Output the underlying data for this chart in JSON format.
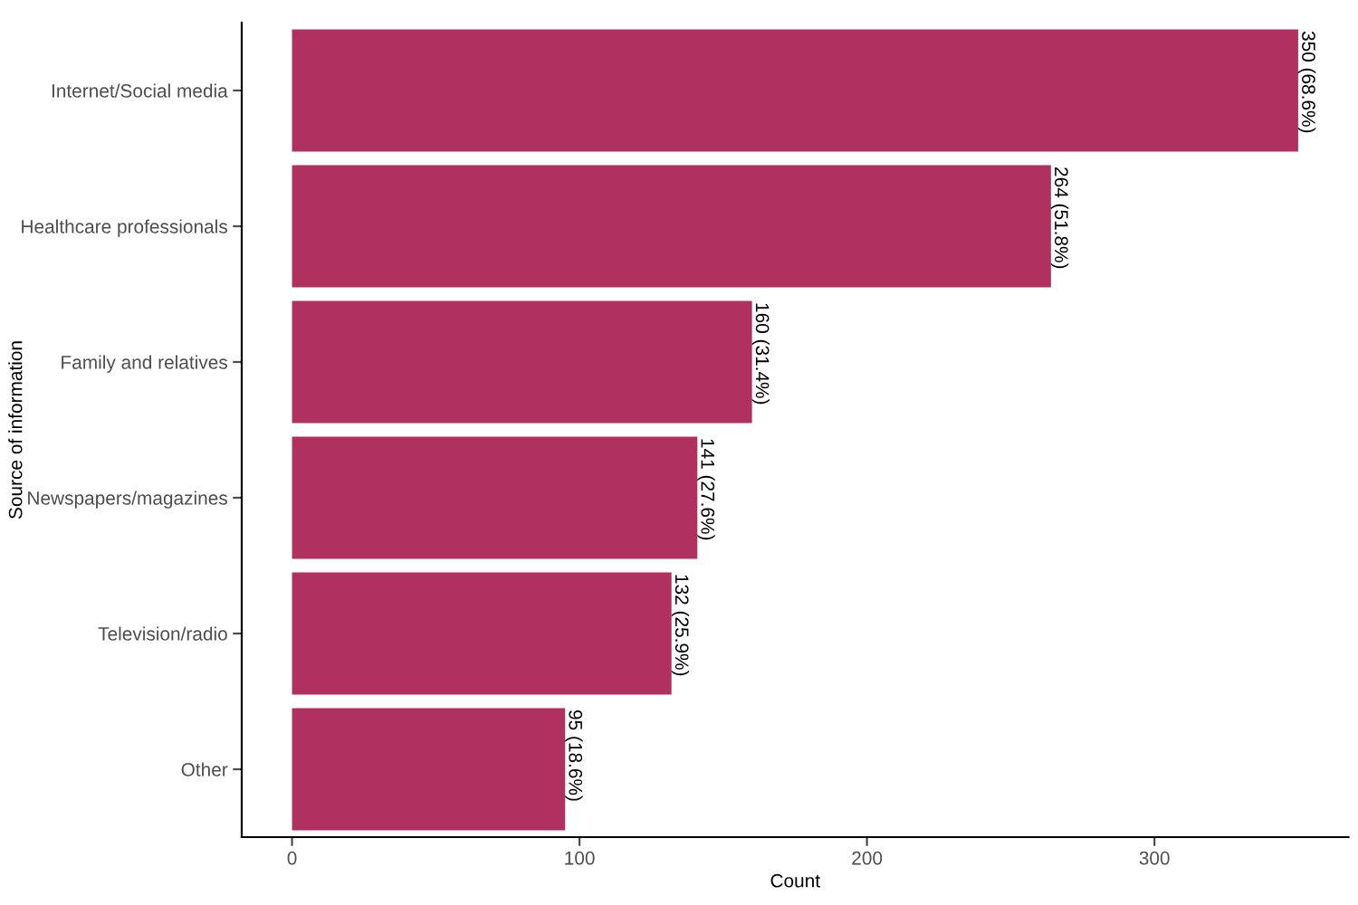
{
  "chart_data": {
    "type": "bar",
    "orientation": "horizontal",
    "xlabel": "Count",
    "ylabel": "Source of information",
    "categories": [
      "Internet/Social media",
      "Healthcare professionals",
      "Family and relatives",
      "Newspapers/magazines",
      "Television/radio",
      "Other"
    ],
    "values": [
      350,
      264,
      160,
      141,
      132,
      95
    ],
    "value_labels": [
      "350 (68.6%)",
      "264 (51.8%)",
      "160 (31.4%)",
      "141 (27.6%)",
      "132 (25.9%)",
      "95 (18.6%)"
    ],
    "color": "#b03060",
    "xlim": [
      -17.5,
      367.5
    ],
    "xticks": [
      0,
      100,
      200,
      300
    ],
    "grid": false,
    "legend": false
  }
}
